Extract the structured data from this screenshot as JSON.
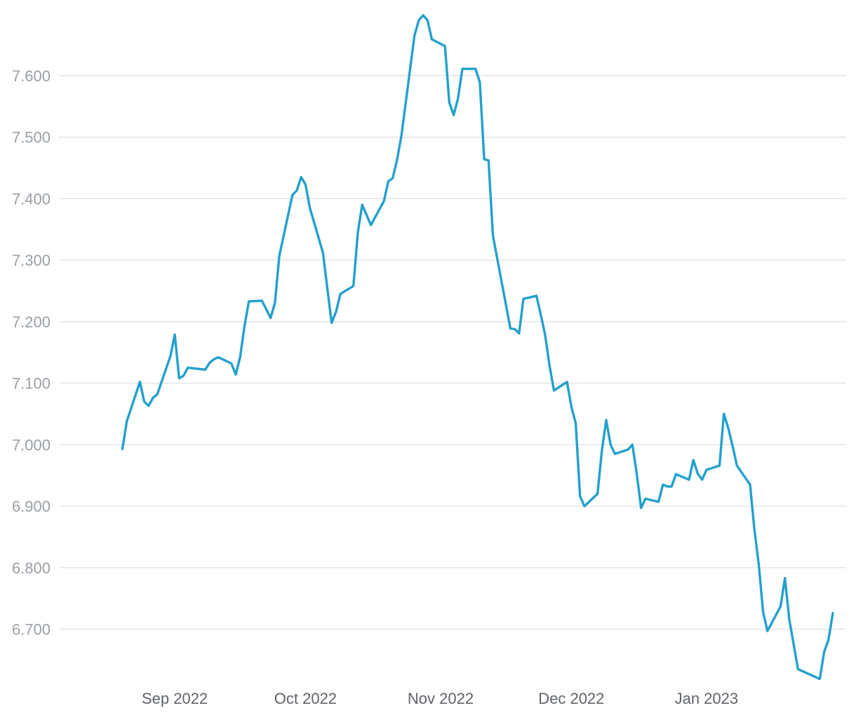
{
  "chart_data": {
    "type": "line",
    "title": "",
    "xlabel": "",
    "ylabel": "",
    "grid": true,
    "legend": "none",
    "colors": {
      "line": "#23a0cc",
      "grid": "#dedede",
      "ytick": "#9aa0a6",
      "xtick": "#5f6368"
    },
    "ylim": [
      6.6,
      7.7
    ],
    "xlim": [
      "2022-08-08",
      "2023-01-30"
    ],
    "y_ticks": [
      {
        "value": 6.7,
        "label": "6.700"
      },
      {
        "value": 6.8,
        "label": "6.800"
      },
      {
        "value": 6.9,
        "label": "6.900"
      },
      {
        "value": 7.0,
        "label": "7.000"
      },
      {
        "value": 7.1,
        "label": "7.100"
      },
      {
        "value": 7.2,
        "label": "7.200"
      },
      {
        "value": 7.3,
        "label": "7.300"
      },
      {
        "value": 7.4,
        "label": "7.400"
      },
      {
        "value": 7.5,
        "label": "7.500"
      },
      {
        "value": 7.6,
        "label": "7.600"
      }
    ],
    "x_ticks": [
      {
        "date": "2022-09-01",
        "label": "Sep 2022"
      },
      {
        "date": "2022-10-01",
        "label": "Oct 2022"
      },
      {
        "date": "2022-11-01",
        "label": "Nov 2022"
      },
      {
        "date": "2022-12-01",
        "label": "Dec 2022"
      },
      {
        "date": "2023-01-01",
        "label": "Jan 2023"
      }
    ],
    "series": [
      {
        "points": [
          [
            "2022-08-20",
            6.993
          ],
          [
            "2022-08-21",
            7.038
          ],
          [
            "2022-08-24",
            7.102
          ],
          [
            "2022-08-25",
            7.07
          ],
          [
            "2022-08-26",
            7.063
          ],
          [
            "2022-08-27",
            7.076
          ],
          [
            "2022-08-28",
            7.082
          ],
          [
            "2022-08-31",
            7.144
          ],
          [
            "2022-09-01",
            7.179
          ],
          [
            "2022-09-02",
            7.108
          ],
          [
            "2022-09-03",
            7.112
          ],
          [
            "2022-09-04",
            7.125
          ],
          [
            "2022-09-08",
            7.122
          ],
          [
            "2022-09-09",
            7.133
          ],
          [
            "2022-09-10",
            7.139
          ],
          [
            "2022-09-11",
            7.142
          ],
          [
            "2022-09-14",
            7.132
          ],
          [
            "2022-09-15",
            7.114
          ],
          [
            "2022-09-16",
            7.142
          ],
          [
            "2022-09-17",
            7.193
          ],
          [
            "2022-09-18",
            7.233
          ],
          [
            "2022-09-21",
            7.234
          ],
          [
            "2022-09-23",
            7.206
          ],
          [
            "2022-09-24",
            7.231
          ],
          [
            "2022-09-25",
            7.307
          ],
          [
            "2022-09-28",
            7.406
          ],
          [
            "2022-09-29",
            7.413
          ],
          [
            "2022-09-30",
            7.435
          ],
          [
            "2022-10-01",
            7.423
          ],
          [
            "2022-10-02",
            7.385
          ],
          [
            "2022-10-05",
            7.312
          ],
          [
            "2022-10-06",
            7.254
          ],
          [
            "2022-10-07",
            7.198
          ],
          [
            "2022-10-08",
            7.216
          ],
          [
            "2022-10-09",
            7.245
          ],
          [
            "2022-10-12",
            7.258
          ],
          [
            "2022-10-13",
            7.345
          ],
          [
            "2022-10-14",
            7.39
          ],
          [
            "2022-10-16",
            7.357
          ],
          [
            "2022-10-19",
            7.396
          ],
          [
            "2022-10-20",
            7.428
          ],
          [
            "2022-10-21",
            7.433
          ],
          [
            "2022-10-22",
            7.463
          ],
          [
            "2022-10-23",
            7.502
          ],
          [
            "2022-10-26",
            7.665
          ],
          [
            "2022-10-27",
            7.69
          ],
          [
            "2022-10-28",
            7.698
          ],
          [
            "2022-10-29",
            7.69
          ],
          [
            "2022-10-30",
            7.659
          ],
          [
            "2022-11-02",
            7.648
          ],
          [
            "2022-11-03",
            7.556
          ],
          [
            "2022-11-04",
            7.536
          ],
          [
            "2022-11-05",
            7.563
          ],
          [
            "2022-11-06",
            7.611
          ],
          [
            "2022-11-09",
            7.611
          ],
          [
            "2022-11-10",
            7.589
          ],
          [
            "2022-11-11",
            7.464
          ],
          [
            "2022-11-12",
            7.462
          ],
          [
            "2022-11-13",
            7.34
          ],
          [
            "2022-11-17",
            7.189
          ],
          [
            "2022-11-18",
            7.188
          ],
          [
            "2022-11-19",
            7.181
          ],
          [
            "2022-11-20",
            7.237
          ],
          [
            "2022-11-23",
            7.242
          ],
          [
            "2022-11-24",
            7.211
          ],
          [
            "2022-11-25",
            7.178
          ],
          [
            "2022-11-26",
            7.128
          ],
          [
            "2022-11-27",
            7.088
          ],
          [
            "2022-11-30",
            7.102
          ],
          [
            "2022-12-01",
            7.062
          ],
          [
            "2022-12-02",
            7.035
          ],
          [
            "2022-12-03",
            6.916
          ],
          [
            "2022-12-04",
            6.9
          ],
          [
            "2022-12-07",
            6.92
          ],
          [
            "2022-12-08",
            6.99
          ],
          [
            "2022-12-09",
            7.04
          ],
          [
            "2022-12-10",
            7.0
          ],
          [
            "2022-12-11",
            6.985
          ],
          [
            "2022-12-14",
            6.992
          ],
          [
            "2022-12-15",
            7.0
          ],
          [
            "2022-12-16",
            6.953
          ],
          [
            "2022-12-17",
            6.897
          ],
          [
            "2022-12-18",
            6.912
          ],
          [
            "2022-12-21",
            6.907
          ],
          [
            "2022-12-22",
            6.935
          ],
          [
            "2022-12-23",
            6.932
          ],
          [
            "2022-12-24",
            6.932
          ],
          [
            "2022-12-25",
            6.952
          ],
          [
            "2022-12-28",
            6.943
          ],
          [
            "2022-12-29",
            6.975
          ],
          [
            "2022-12-30",
            6.953
          ],
          [
            "2022-12-31",
            6.943
          ],
          [
            "2023-01-01",
            6.959
          ],
          [
            "2023-01-04",
            6.966
          ],
          [
            "2023-01-05",
            7.05
          ],
          [
            "2023-01-06",
            7.027
          ],
          [
            "2023-01-07",
            6.998
          ],
          [
            "2023-01-08",
            6.966
          ],
          [
            "2023-01-11",
            6.935
          ],
          [
            "2023-01-12",
            6.862
          ],
          [
            "2023-01-13",
            6.805
          ],
          [
            "2023-01-14",
            6.728
          ],
          [
            "2023-01-15",
            6.697
          ],
          [
            "2023-01-18",
            6.737
          ],
          [
            "2023-01-19",
            6.783
          ],
          [
            "2023-01-20",
            6.716
          ],
          [
            "2023-01-22",
            6.635
          ],
          [
            "2023-01-27",
            6.619
          ],
          [
            "2023-01-28",
            6.663
          ],
          [
            "2023-01-29",
            6.683
          ],
          [
            "2023-01-30",
            6.726
          ]
        ]
      }
    ]
  }
}
